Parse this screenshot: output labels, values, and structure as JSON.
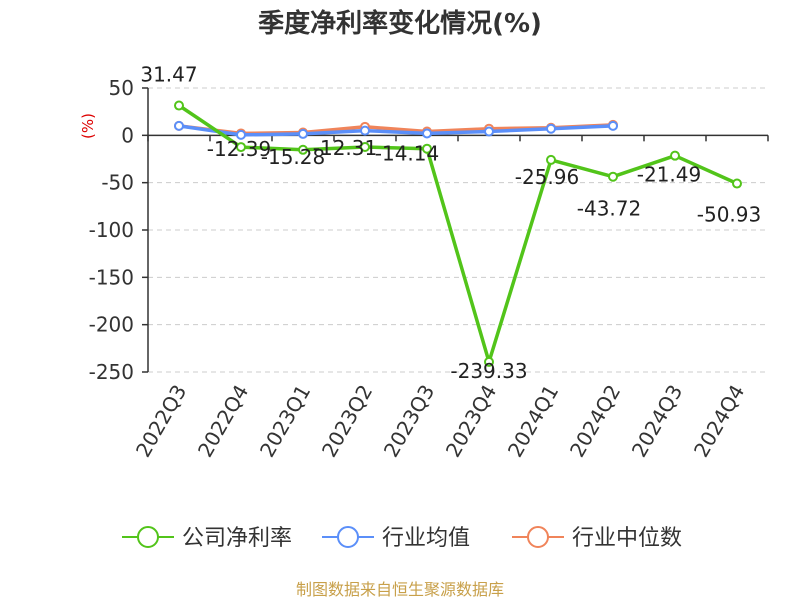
{
  "chart_data": {
    "type": "line",
    "title": "季度净利率变化情况(%)",
    "unit_label": "(%)",
    "categories": [
      "2022Q3",
      "2022Q4",
      "2023Q1",
      "2023Q2",
      "2023Q3",
      "2023Q4",
      "2024Q1",
      "2024Q2",
      "2024Q3",
      "2024Q4"
    ],
    "ylim": [
      -250,
      50
    ],
    "yticks": [
      50,
      0,
      -50,
      -100,
      -150,
      -200,
      -250
    ],
    "grid": true,
    "legend_position": "bottom",
    "series": [
      {
        "name": "公司净利率",
        "color": "#52c41a",
        "values": [
          31.47,
          -12.39,
          -15.28,
          -12.31,
          -14.14,
          -239.33,
          -25.96,
          -43.72,
          -21.49,
          -50.93
        ],
        "labels": [
          "31.47",
          "-12.39",
          "-15.28",
          "-12.31",
          "-14.14",
          "-239.33",
          "-25.96",
          "-43.72",
          "-21.49",
          "-50.93"
        ]
      },
      {
        "name": "行业均值",
        "color": "#5b8ff9",
        "values": [
          10,
          0.5,
          1.5,
          5,
          2,
          4,
          7,
          10,
          null,
          null
        ]
      },
      {
        "name": "行业中位数",
        "color": "#f0845a",
        "values": [
          10,
          2,
          3,
          9,
          4,
          7,
          8,
          11,
          null,
          null
        ]
      }
    ]
  },
  "source": "制图数据来自恒生聚源数据库"
}
